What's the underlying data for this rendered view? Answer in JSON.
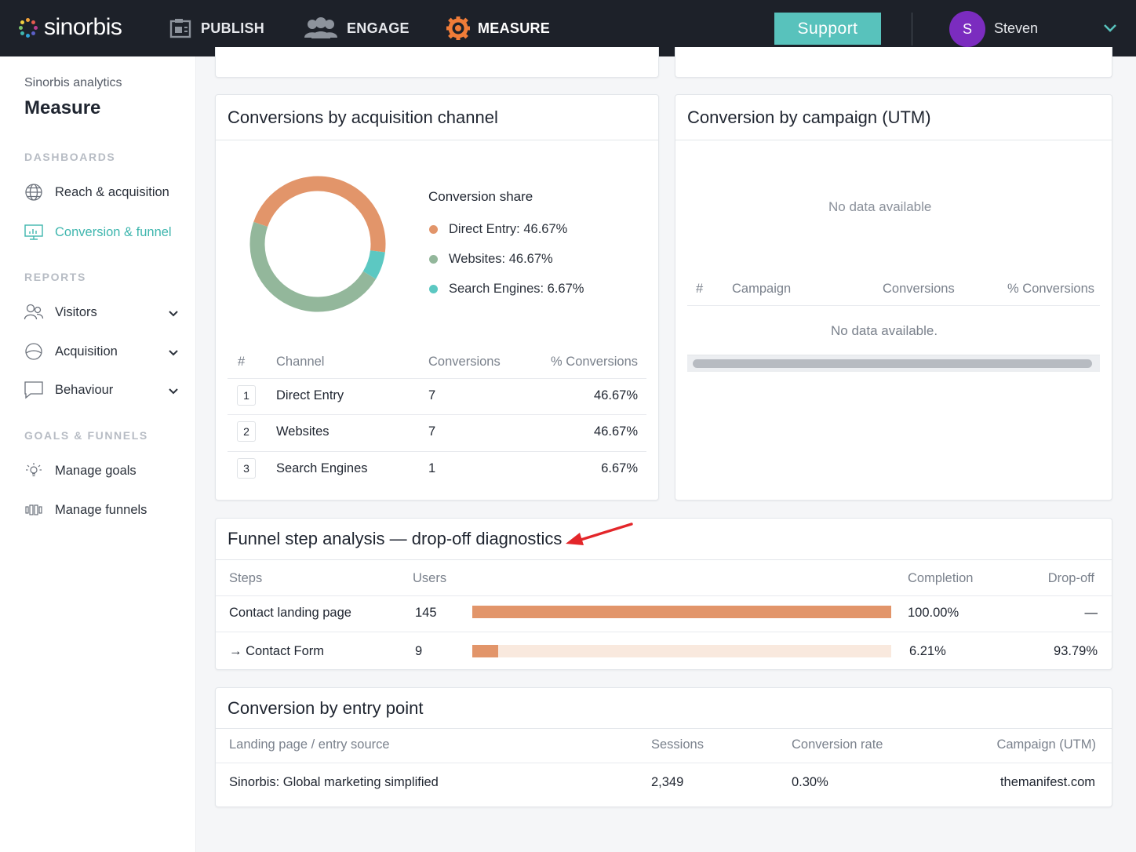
{
  "brand": {
    "name": "sinorbis"
  },
  "topnav": {
    "items": [
      {
        "label": "PUBLISH",
        "icon": "publish-icon"
      },
      {
        "label": "ENGAGE",
        "icon": "people-icon"
      },
      {
        "label": "MEASURE",
        "icon": "gear-icon"
      }
    ],
    "support_label": "Support",
    "user_initial": "S",
    "user_name": "Steven"
  },
  "sidebar": {
    "app_label": "Sinorbis analytics",
    "title": "Measure",
    "sections": {
      "dashboards": "DASHBOARDS",
      "reports": "REPORTS",
      "goals": "GOALS & FUNNELS"
    },
    "items": [
      {
        "label": "Reach & acquisition",
        "icon": "globe-icon"
      },
      {
        "label": "Conversion & funnel",
        "icon": "monitor-chart-icon",
        "active": true
      },
      {
        "label": "Visitors",
        "icon": "users-icon"
      },
      {
        "label": "Acquisition",
        "icon": "pie-icon"
      },
      {
        "label": "Behaviour",
        "icon": "chat-icon"
      },
      {
        "label": "Manage goals",
        "icon": "lightbulb-icon"
      },
      {
        "label": "Manage funnels",
        "icon": "funnel-icon"
      }
    ]
  },
  "channel_card": {
    "title": "Conversions by acquisition channel",
    "legend_title": "Conversion share",
    "legend": [
      "Direct Entry: 46.67%",
      "Websites: 46.67%",
      "Search Engines: 6.67%"
    ],
    "columns": [
      "#",
      "Channel",
      "Conversions",
      "% Conversions"
    ],
    "rows": [
      {
        "rank": "1",
        "channel": "Direct Entry",
        "conversions": "7",
        "percent": "46.67%"
      },
      {
        "rank": "2",
        "channel": "Websites",
        "conversions": "7",
        "percent": "46.67%"
      },
      {
        "rank": "3",
        "channel": "Search Engines",
        "conversions": "1",
        "percent": "6.67%"
      }
    ]
  },
  "chart_data": {
    "type": "pie",
    "title": "Conversion share",
    "categories": [
      "Direct Entry",
      "Websites",
      "Search Engines"
    ],
    "values": [
      46.67,
      46.67,
      6.67
    ],
    "colors": [
      "#e2956a",
      "#93b79b",
      "#5cc8c2"
    ],
    "legend": "right"
  },
  "campaign_card": {
    "title": "Conversion by campaign (UTM)",
    "empty_text": "No data available",
    "columns": [
      "#",
      "Campaign",
      "Conversions",
      "% Conversions"
    ],
    "table_empty": "No data available."
  },
  "funnel_card": {
    "title": "Funnel step analysis — drop-off diagnostics",
    "columns": [
      "Steps",
      "Users",
      "Completion",
      "Drop-off"
    ],
    "rows": [
      {
        "step": "Contact landing page",
        "users": "145",
        "completion": "100.00%",
        "dropoff": "—",
        "fill": 1.0
      },
      {
        "step": "→ Contact Form",
        "users": "9",
        "completion": "6.21%",
        "dropoff": "93.79%",
        "fill": 0.0621
      }
    ],
    "accent_color": "#e2956a",
    "arrow_color": "#e3262a"
  },
  "entry_card": {
    "title": "Conversion by entry point",
    "columns": [
      "Landing page / entry source",
      "Sessions",
      "Conversion rate",
      "Campaign (UTM)"
    ],
    "rows": [
      {
        "page": "Sinorbis: Global marketing simplified",
        "sessions": "2,349",
        "rate": "0.30%",
        "campaign": "themanifest.com"
      }
    ]
  }
}
